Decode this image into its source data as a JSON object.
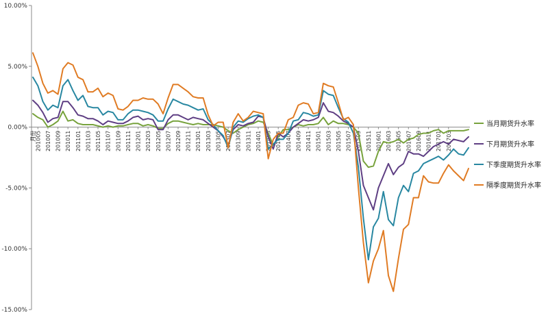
{
  "chart_data": {
    "type": "line",
    "title": "",
    "xlabel": "月份",
    "ylabel": "",
    "ylim": [
      -15,
      10
    ],
    "yticks": [
      10,
      5,
      0,
      -5,
      -10,
      -15
    ],
    "ytick_labels": [
      "10.00%",
      "5.00%",
      "0.00%",
      "-5.00%",
      "-10.00%",
      "-15.00%"
    ],
    "grid": false,
    "legend_position": "right",
    "x_start": "2010-04",
    "x_end": "2017-03",
    "x_tick_labels": [
      "201005",
      "201007",
      "201009",
      "201011",
      "201101",
      "201103",
      "201105",
      "201107",
      "201109",
      "201111",
      "201201",
      "201203",
      "201205",
      "201207",
      "201209",
      "201211",
      "201301",
      "201303",
      "201305",
      "201307",
      "201309",
      "201311",
      "201401",
      "201403",
      "201405",
      "201407",
      "201409",
      "201411",
      "201501",
      "201503",
      "201505",
      "201507",
      "201509",
      "201511",
      "201601",
      "201603",
      "201605",
      "201607",
      "201609",
      "201611",
      "201701",
      "201703"
    ],
    "series": [
      {
        "name": "当月期货升水率",
        "color": "#77a23c",
        "values": [
          1.1,
          0.8,
          0.6,
          0.0,
          0.2,
          0.5,
          1.3,
          0.5,
          0.6,
          0.3,
          0.2,
          0.2,
          0.2,
          0.1,
          0.0,
          0.1,
          0.0,
          0.1,
          0.1,
          0.2,
          0.3,
          0.3,
          0.1,
          0.2,
          0.1,
          -0.1,
          -0.1,
          0.3,
          0.5,
          0.5,
          0.4,
          0.3,
          0.2,
          0.3,
          0.2,
          0.2,
          0.2,
          0.1,
          0.0,
          -0.3,
          -0.5,
          -0.2,
          0.0,
          0.2,
          0.3,
          0.5,
          0.4,
          -0.5,
          -1.5,
          -0.8,
          -0.2,
          -0.2,
          0.0,
          0.2,
          0.1,
          0.2,
          0.2,
          0.3,
          0.8,
          0.2,
          0.5,
          0.3,
          0.3,
          0.2,
          0.0,
          -0.5,
          -2.8,
          -3.3,
          -3.2,
          -2.0,
          -1.2,
          -1.3,
          -1.2,
          -1.0,
          -1.3,
          -1.0,
          -0.9,
          -0.6,
          -0.5,
          -0.5,
          -0.3,
          -0.2,
          -0.5,
          -0.3,
          -0.3,
          -0.3,
          -0.3,
          -0.2
        ]
      },
      {
        "name": "下月期货升水率",
        "color": "#5e3e83",
        "values": [
          2.2,
          1.8,
          1.2,
          0.4,
          0.7,
          0.8,
          2.1,
          2.1,
          1.6,
          1.0,
          0.9,
          0.7,
          0.7,
          0.5,
          0.2,
          0.5,
          0.4,
          0.3,
          0.3,
          0.5,
          0.8,
          0.9,
          0.6,
          0.7,
          0.6,
          -0.2,
          -0.2,
          0.6,
          1.0,
          1.0,
          0.8,
          0.6,
          0.8,
          0.7,
          0.6,
          0.3,
          0.0,
          -0.3,
          -0.8,
          -1.5,
          -0.2,
          0.2,
          0.1,
          0.3,
          0.4,
          0.9,
          0.8,
          -0.8,
          -1.8,
          -0.5,
          -0.8,
          -0.5,
          0.0,
          0.3,
          0.6,
          0.5,
          0.6,
          0.8,
          2.0,
          1.3,
          1.2,
          0.9,
          0.5,
          0.3,
          0.0,
          -2.0,
          -4.8,
          -5.8,
          -6.8,
          -5.0,
          -4.0,
          -3.0,
          -3.9,
          -3.3,
          -3.0,
          -2.0,
          -2.2,
          -2.2,
          -2.4,
          -2.0,
          -1.6,
          -1.4,
          -1.2,
          -1.4,
          -1.0,
          -1.1,
          -1.2,
          -0.8
        ]
      },
      {
        "name": "下季度期货升水率",
        "color": "#2887a1",
        "values": [
          4.1,
          3.4,
          2.1,
          1.4,
          1.8,
          1.6,
          3.4,
          3.9,
          3.0,
          2.2,
          2.6,
          1.7,
          1.6,
          1.6,
          1.0,
          1.3,
          1.2,
          0.6,
          0.6,
          1.1,
          1.4,
          1.4,
          1.3,
          1.2,
          1.0,
          0.5,
          0.5,
          1.5,
          2.3,
          2.1,
          1.9,
          1.8,
          1.6,
          1.4,
          1.5,
          0.6,
          0.2,
          -0.3,
          -0.7,
          -1.7,
          0.0,
          0.5,
          0.4,
          0.7,
          0.9,
          1.0,
          0.8,
          -1.8,
          -1.4,
          -1.0,
          -1.0,
          -0.5,
          0.5,
          0.6,
          1.2,
          1.1,
          0.9,
          1.0,
          3.0,
          2.7,
          2.6,
          1.6,
          0.7,
          0.4,
          -0.5,
          -3.3,
          -7.5,
          -10.9,
          -8.2,
          -7.5,
          -5.3,
          -7.6,
          -8.1,
          -5.8,
          -4.8,
          -5.3,
          -3.8,
          -3.6,
          -3.0,
          -2.8,
          -2.6,
          -2.4,
          -2.7,
          -2.3,
          -1.8,
          -2.2,
          -2.3,
          -1.7
        ]
      },
      {
        "name": "隔季度期货升水率",
        "color": "#e07b23",
        "values": [
          6.1,
          5.0,
          3.6,
          2.8,
          3.0,
          2.7,
          4.8,
          5.3,
          5.1,
          4.1,
          3.9,
          2.9,
          2.9,
          3.2,
          2.5,
          2.8,
          2.6,
          1.5,
          1.4,
          1.7,
          2.2,
          2.2,
          2.4,
          2.3,
          2.3,
          1.9,
          1.1,
          2.4,
          3.5,
          3.5,
          3.2,
          2.9,
          2.5,
          2.4,
          2.4,
          1.0,
          0.1,
          0.4,
          0.4,
          -1.7,
          0.4,
          1.1,
          0.5,
          0.8,
          1.3,
          1.2,
          1.1,
          -2.6,
          -1.0,
          -0.5,
          -0.5,
          0.6,
          0.8,
          1.8,
          2.0,
          1.9,
          1.1,
          1.2,
          3.6,
          3.4,
          3.3,
          2.0,
          0.6,
          0.8,
          0.2,
          -5.0,
          -9.5,
          -12.8,
          -11.0,
          -10.0,
          -8.5,
          -12.2,
          -13.5,
          -10.8,
          -8.4,
          -8.0,
          -5.8,
          -5.8,
          -4.0,
          -4.5,
          -4.6,
          -4.6,
          -3.8,
          -3.1,
          -3.6,
          -4.0,
          -4.4,
          -3.4
        ]
      }
    ]
  }
}
